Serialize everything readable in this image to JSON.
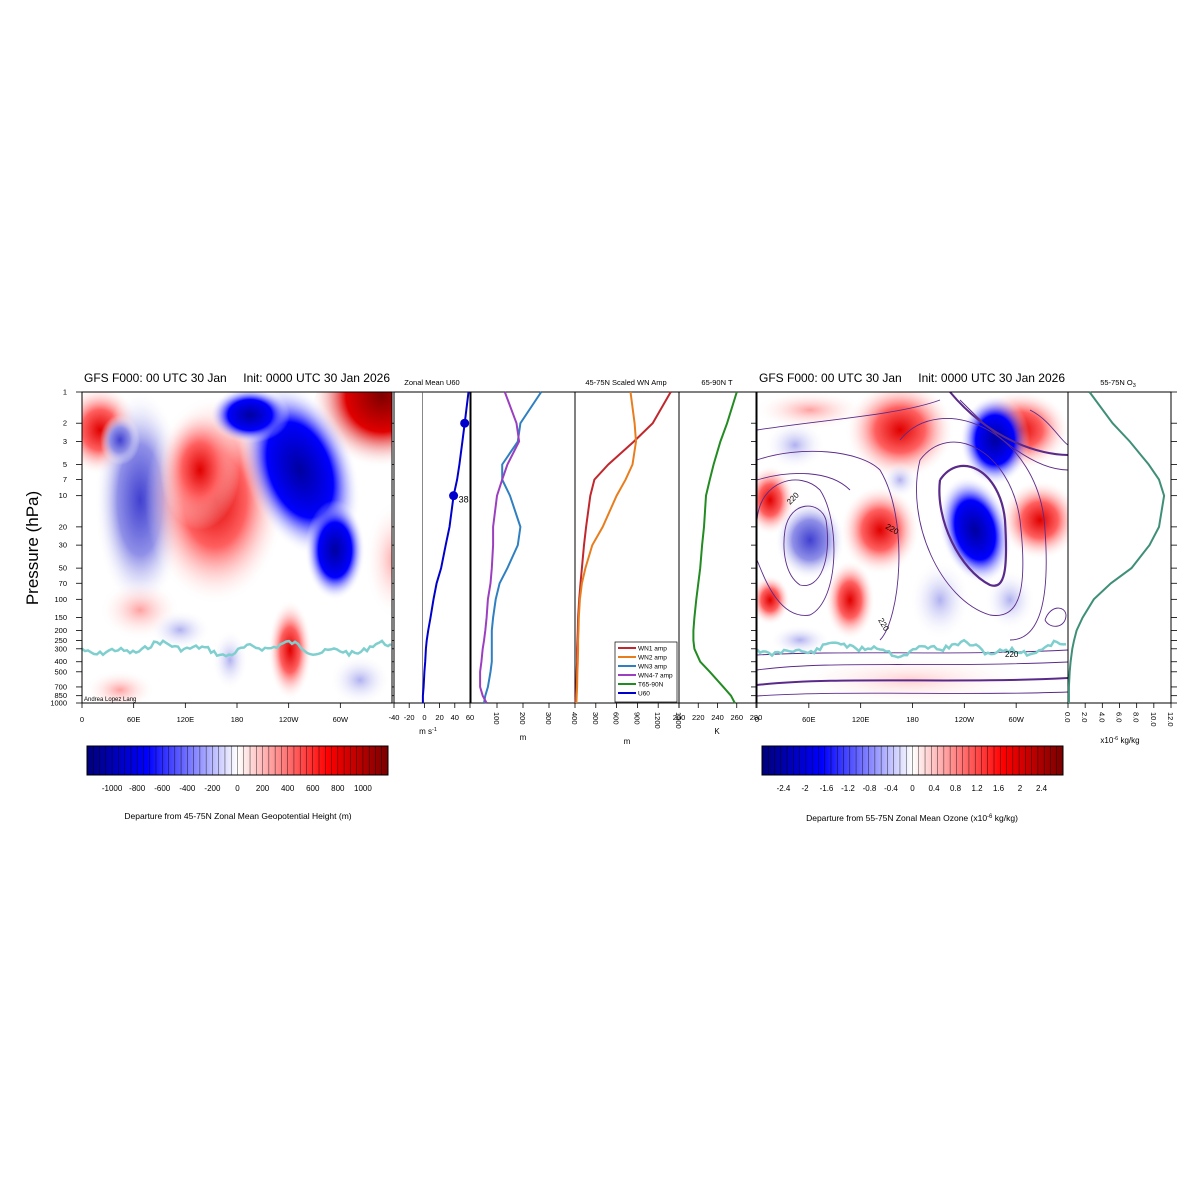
{
  "colors": {
    "blue_dark": "#00007a",
    "blue": "#0000ff",
    "white": "#ffffff",
    "red": "#ff0000",
    "red_dark": "#7a0000",
    "tropopause": "#7fcfcf",
    "contour": "#5a2a8a",
    "wn1": "#c0282d",
    "wn2": "#e87d1e",
    "wn3": "#2f7fc1",
    "wn47": "#9b3fc0",
    "t6590": "#228b22",
    "u60": "#0000cc",
    "o3": "#3f8f78"
  },
  "panels": {
    "height_title_left": "GFS F000: 00 UTC 30 Jan",
    "height_title_right": "Init: 0000 UTC 30 Jan 2026",
    "ozone_title_left": "GFS F000: 00 UTC 30 Jan",
    "ozone_title_right": "Init: 0000 UTC 30 Jan 2026",
    "ylabel": "Pressure (hPa)",
    "credit": "Andrea Lopez Lang",
    "u60_title": "Zonal Mean U60",
    "u60_units": "m s",
    "u60_units_sup": "-1",
    "u60_marker_label": "38.4",
    "wn_title": "45-75N Scaled WN Amp",
    "wn_units_left": "m",
    "wn_units_right": "m",
    "t_title": "65-90N T",
    "t_units": "K",
    "o3_title": "55-75N O",
    "o3_title_sub": "3",
    "o3_units_pre": "x10",
    "o3_units_sup": "-6",
    "o3_units_post": " kg/kg",
    "height_cbar_label": "Departure from 45-75N Zonal Mean Geopotential Height (m)",
    "ozone_cbar_label_pre": "Departure from 55-75N Zonal Mean Ozone (x10",
    "ozone_cbar_label_sup": "-6",
    "ozone_cbar_label_post": " kg/kg)",
    "contour_labels": [
      "220",
      "220",
      "220",
      "220"
    ]
  },
  "legend": [
    "WN1 amp",
    "WN2 amp",
    "WN3 amp",
    "WN4-7 amp",
    "T65-90N",
    "U60"
  ],
  "chart_data": {
    "type": "line",
    "pressure_levels": [
      1,
      2,
      3,
      5,
      7,
      10,
      20,
      30,
      50,
      70,
      100,
      150,
      200,
      250,
      300,
      400,
      500,
      700,
      850,
      1000
    ],
    "pressure_tick_labels": [
      "1",
      "2",
      "3",
      "5",
      "7",
      "10",
      "20",
      "30",
      "50",
      "70",
      "100",
      "150",
      "200",
      "250",
      "300",
      "400",
      "500",
      "700",
      "850",
      "1000"
    ],
    "lon_tick_labels": [
      "0",
      "60E",
      "120E",
      "180",
      "120W",
      "60W"
    ],
    "u60": {
      "xlim": [
        -40,
        60
      ],
      "xticks": [
        -40,
        -20,
        0,
        20,
        40,
        60
      ],
      "xtick_labels": [
        "-40",
        "-20",
        "0",
        "20",
        "40",
        "60"
      ],
      "values": [
        58,
        53,
        50,
        46,
        43,
        38.4,
        33,
        28,
        22,
        16,
        12,
        8,
        5,
        3,
        2,
        1,
        0,
        -1,
        -2,
        -2
      ],
      "marker_levels": [
        2,
        10
      ]
    },
    "wn_left": {
      "xlim": [
        0,
        400
      ],
      "xticks": [
        100,
        200,
        300,
        400
      ],
      "xtick_labels": [
        "100",
        "200",
        "300",
        "400"
      ],
      "series": [
        {
          "name": "WN3 amp",
          "values": [
            270,
            190,
            180,
            120,
            120,
            150,
            190,
            180,
            140,
            110,
            95,
            85,
            80,
            80,
            80,
            80,
            75,
            65,
            55,
            50
          ]
        },
        {
          "name": "WN4-7 amp",
          "values": [
            130,
            175,
            185,
            140,
            120,
            100,
            85,
            85,
            80,
            75,
            65,
            60,
            55,
            50,
            45,
            40,
            35,
            35,
            45,
            60
          ]
        }
      ]
    },
    "wn_right": {
      "xlim": [
        0,
        1500
      ],
      "xticks": [
        300,
        600,
        900,
        1200,
        1500
      ],
      "xtick_labels": [
        "300",
        "600",
        "900",
        "1200",
        "1500"
      ],
      "series": [
        {
          "name": "WN1 amp",
          "values": [
            1380,
            1120,
            850,
            480,
            280,
            220,
            160,
            130,
            100,
            80,
            60,
            45,
            40,
            35,
            30,
            30,
            25,
            20,
            15,
            10
          ]
        },
        {
          "name": "WN2 amp",
          "values": [
            800,
            860,
            880,
            830,
            730,
            600,
            400,
            250,
            150,
            100,
            70,
            55,
            50,
            45,
            45,
            40,
            35,
            30,
            25,
            20
          ]
        }
      ]
    },
    "temperature": {
      "name": "T65-90N",
      "xlim": [
        200,
        280
      ],
      "xticks": [
        200,
        220,
        240,
        260,
        280
      ],
      "xtick_labels": [
        "200",
        "220",
        "240",
        "260",
        "280"
      ],
      "values": [
        260,
        250,
        243,
        236,
        232,
        228,
        226,
        224,
        222,
        220,
        218,
        216,
        215,
        215,
        216,
        222,
        232,
        246,
        254,
        258
      ]
    },
    "ozone": {
      "xlim": [
        0,
        12
      ],
      "xticks": [
        0,
        2,
        4,
        6,
        8,
        10,
        12
      ],
      "xtick_labels": [
        "0.0",
        "2.0",
        "4.0",
        "6.0",
        "8.0",
        "10.0",
        "12.0"
      ],
      "values": [
        2.5,
        5.2,
        7.2,
        9.4,
        10.6,
        11.2,
        10.6,
        9.5,
        7.4,
        5.0,
        3.0,
        1.7,
        1.0,
        0.7,
        0.5,
        0.3,
        0.2,
        0.1,
        0.1,
        0.1
      ]
    },
    "height_colorbar": {
      "range": [
        -1200,
        1200
      ],
      "tick_labels": [
        "-1000",
        "-800",
        "-600",
        "-400",
        "-200",
        "0",
        "200",
        "400",
        "600",
        "800",
        "1000"
      ]
    },
    "ozone_colorbar": {
      "range": [
        -2.8,
        2.8
      ],
      "tick_labels": [
        "-2.4",
        "-2",
        "-1.6",
        "-1.2",
        "-0.8",
        "-0.4",
        "0",
        "0.4",
        "0.8",
        "1.2",
        "1.6",
        "2",
        "2.4"
      ]
    }
  }
}
